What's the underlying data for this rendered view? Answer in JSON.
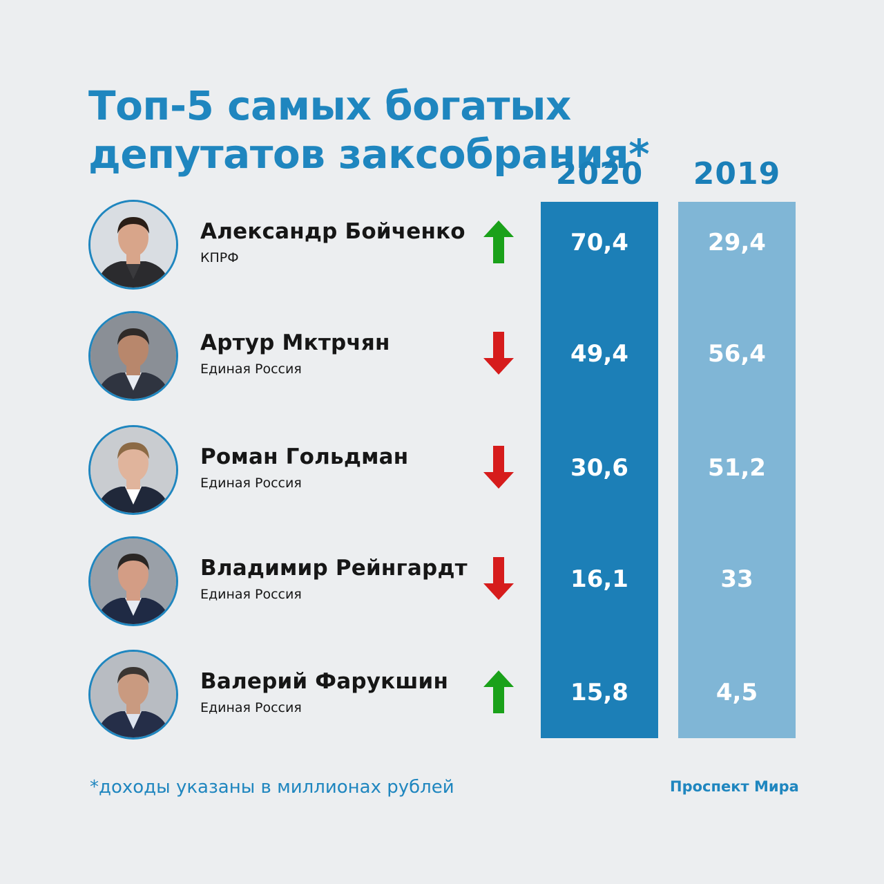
{
  "title": "Топ-5 самых богатых депутатов заксобрания*",
  "years": [
    "2020",
    "2019"
  ],
  "footnote": "*доходы указаны в миллионах рублей",
  "brand": "Проспект Мира",
  "colors": {
    "accent": "#1f86bf",
    "column_2020": "#1c7fb7",
    "column_2019": "#80b6d6",
    "arrow_up": "#1aa11a",
    "arrow_down": "#d61c1c",
    "background": "#eceef0"
  },
  "chart_data": {
    "type": "table",
    "title": "Топ-5 самых богатых депутатов заксобрания*",
    "columns": [
      "2020",
      "2019"
    ],
    "rows": [
      {
        "name": "Александр Бойченко",
        "party": "КПРФ",
        "trend": "up",
        "trend_icon": "arrow-up-icon",
        "values": [
          "70,4",
          "29,4"
        ]
      },
      {
        "name": "Артур Мктрчян",
        "party": "Единая Россия",
        "trend": "down",
        "trend_icon": "arrow-down-icon",
        "values": [
          "49,4",
          "56,4"
        ]
      },
      {
        "name": "Роман Гольдман",
        "party": "Единая Россия",
        "trend": "down",
        "trend_icon": "arrow-down-icon",
        "values": [
          "30,6",
          "51,2"
        ]
      },
      {
        "name": "Владимир Рейнгардт",
        "party": "Единая Россия",
        "trend": "down",
        "trend_icon": "arrow-down-icon",
        "values": [
          "16,1",
          "33"
        ]
      },
      {
        "name": "Валерий Фарукшин",
        "party": "Единая Россия",
        "trend": "up",
        "trend_icon": "arrow-up-icon",
        "values": [
          "15,8",
          "4,5"
        ]
      }
    ],
    "note": "*доходы указаны в миллионах рублей"
  }
}
